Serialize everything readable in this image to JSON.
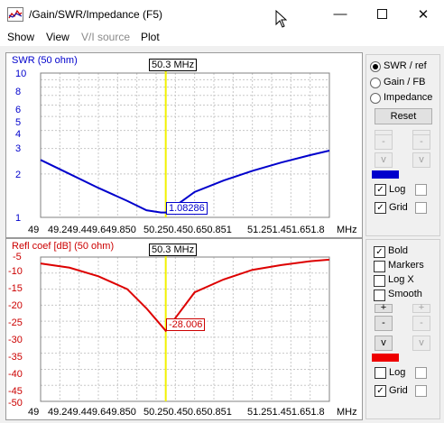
{
  "window": {
    "title": "/Gain/SWR/Impedance (F5)"
  },
  "menu": {
    "items": [
      "Show",
      "View",
      "V/I source",
      "Plot"
    ]
  },
  "top_plot": {
    "title": "SWR (50 ohm)",
    "y_ticks": [
      "10",
      "8",
      "6",
      "5",
      "4",
      "3",
      "2",
      "1"
    ],
    "x_ticks": [
      "49",
      "49.249.449.649.850",
      "50.250.450.650.851",
      "51.251.451.651.8",
      "MHz"
    ],
    "marker_freq": "50.3 MHz",
    "marker_value": "1.08286",
    "line_color": "#0000cc",
    "chart_data": {
      "type": "line",
      "x": [
        49.0,
        49.3,
        49.6,
        49.9,
        50.1,
        50.25,
        50.3,
        50.4,
        50.6,
        50.9,
        51.2,
        51.5,
        51.8,
        52.0
      ],
      "y": [
        2.5,
        2.0,
        1.6,
        1.3,
        1.12,
        1.08,
        1.08,
        1.2,
        1.5,
        1.8,
        2.1,
        2.4,
        2.7,
        2.9
      ],
      "ylim": [
        1,
        10
      ],
      "yscale": "log",
      "xlim": [
        49,
        52
      ],
      "grid": true
    }
  },
  "bottom_plot": {
    "title": "Refl coef [dB] (50 ohm)",
    "y_ticks": [
      "-5",
      "-10",
      "-15",
      "-20",
      "-25",
      "-30",
      "-35",
      "-40",
      "-45",
      "-50"
    ],
    "x_ticks": [
      "49",
      "49.249.449.649.850",
      "50.250.450.650.851",
      "51.251.451.651.8",
      "MHz"
    ],
    "marker_freq": "50.3 MHz",
    "marker_value": "-28.006",
    "line_color": "#dd0000",
    "chart_data": {
      "type": "line",
      "x": [
        49.0,
        49.3,
        49.6,
        49.9,
        50.1,
        50.2,
        50.3,
        50.4,
        50.6,
        50.9,
        51.2,
        51.5,
        51.8,
        52.0
      ],
      "y": [
        -7,
        -8.3,
        -11,
        -15,
        -21,
        -24.5,
        -28.0,
        -24,
        -16,
        -12,
        -9,
        -7.5,
        -6.3,
        -5.8
      ],
      "ylim": [
        -50,
        -5
      ],
      "xlim": [
        49,
        52
      ],
      "grid": true
    }
  },
  "side_top": {
    "radios": [
      {
        "label": "SWR / ref",
        "checked": true
      },
      {
        "label": "Gain / FB",
        "checked": false
      },
      {
        "label": "Impedance",
        "checked": false
      }
    ],
    "reset_label": "Reset",
    "btn_minus": "-",
    "btn_v": "v",
    "swatch_color": "#0000cc",
    "log_label": "Log",
    "log_checked": true,
    "grid_label": "Grid",
    "grid_checked": true
  },
  "side_bottom": {
    "checks": [
      {
        "label": "Bold",
        "checked": true
      },
      {
        "label": "Markers",
        "checked": false
      },
      {
        "label": "Log X",
        "checked": false
      },
      {
        "label": "Smooth",
        "checked": false
      }
    ],
    "btn_plus": "+",
    "btn_minus": "-",
    "btn_v": "v",
    "swatch_color": "#ee0000",
    "log_label": "Log",
    "log_checked": false,
    "grid_label": "Grid",
    "grid_checked": true
  }
}
